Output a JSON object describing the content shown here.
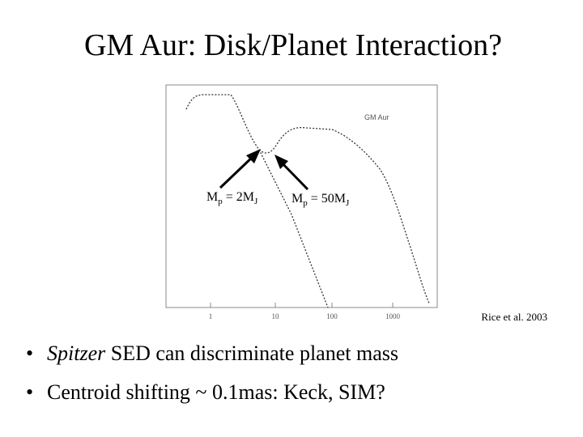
{
  "title": "GM Aur: Disk/Planet Interaction?",
  "plot": {
    "legend": "GM Aur",
    "x_ticks": [
      "1",
      "10",
      "100",
      "1000"
    ],
    "annotations": [
      {
        "base": "M",
        "sub": "p",
        "mid": " = 2M",
        "sub2": "J"
      },
      {
        "base": "M",
        "sub": "p",
        "mid": " = 50M",
        "sub2": "J"
      }
    ],
    "credit": "Rice et al. 2003"
  },
  "bullets": [
    {
      "emphasis": "Spitzer",
      "text": " SED can discriminate planet mass"
    },
    {
      "text": "Centroid shifting ~ 0.1mas: Keck, SIM?"
    }
  ]
}
